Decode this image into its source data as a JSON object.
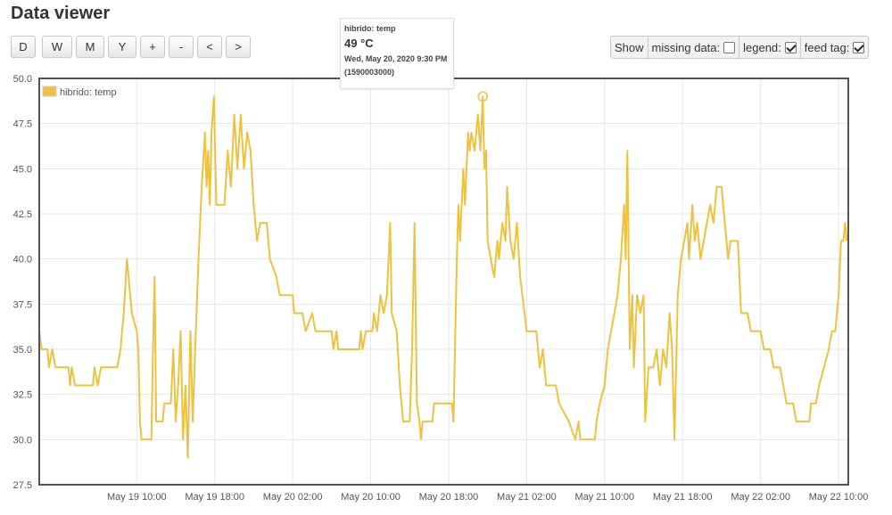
{
  "header": {
    "title": "Data viewer"
  },
  "toolbar": {
    "buttons": [
      "D",
      "W",
      "M",
      "Y",
      "+",
      "-",
      "<",
      ">"
    ],
    "show_label": "Show",
    "missing_label": "missing data:",
    "legend_label": "legend:",
    "feedtag_label": "feed tag:",
    "missing_checked": false,
    "legend_checked": true,
    "feedtag_checked": true
  },
  "tooltip": {
    "series": "hibrido: temp",
    "value": "49 °C",
    "date": "Wed, May 20, 2020 9:30 PM",
    "timestamp": "(1590003000)"
  },
  "chart_data": {
    "type": "line",
    "title": "",
    "xlabel": "",
    "ylabel": "",
    "legend_position": "top-left",
    "grid": true,
    "ylim": [
      27.5,
      50.0
    ],
    "xlim": [
      "2020-05-19 00:00",
      "2020-05-22 11:00"
    ],
    "y_ticks": [
      "27.5",
      "30.0",
      "32.5",
      "35.0",
      "37.5",
      "40.0",
      "42.5",
      "45.0",
      "47.5",
      "50.0"
    ],
    "x_ticks": [
      {
        "time": "2020-05-19 10:00",
        "label": "May 19 10:00"
      },
      {
        "time": "2020-05-19 18:00",
        "label": "May 19 18:00"
      },
      {
        "time": "2020-05-20 02:00",
        "label": "May 20 02:00"
      },
      {
        "time": "2020-05-20 10:00",
        "label": "May 20 10:00"
      },
      {
        "time": "2020-05-20 18:00",
        "label": "May 20 18:00"
      },
      {
        "time": "2020-05-21 02:00",
        "label": "May 21 02:00"
      },
      {
        "time": "2020-05-21 10:00",
        "label": "May 21 10:00"
      },
      {
        "time": "2020-05-21 18:00",
        "label": "May 21 18:00"
      },
      {
        "time": "2020-05-22 02:00",
        "label": "May 22 02:00"
      },
      {
        "time": "2020-05-22 10:00",
        "label": "May 22 10:00"
      }
    ],
    "highlight": {
      "time": "2020-05-20 21:30",
      "value": 49
    },
    "series": [
      {
        "name": "hibrido: temp",
        "color": "#edc240",
        "points": [
          [
            "2020-05-19 00:00",
            36
          ],
          [
            "2020-05-19 00:15",
            35
          ],
          [
            "2020-05-19 00:50",
            35
          ],
          [
            "2020-05-19 01:00",
            34
          ],
          [
            "2020-05-19 01:20",
            35
          ],
          [
            "2020-05-19 01:40",
            34
          ],
          [
            "2020-05-19 03:00",
            34
          ],
          [
            "2020-05-19 03:10",
            33
          ],
          [
            "2020-05-19 03:20",
            34
          ],
          [
            "2020-05-19 03:40",
            33
          ],
          [
            "2020-05-19 05:30",
            33
          ],
          [
            "2020-05-19 05:40",
            34
          ],
          [
            "2020-05-19 06:00",
            33
          ],
          [
            "2020-05-19 06:20",
            34
          ],
          [
            "2020-05-19 08:00",
            34
          ],
          [
            "2020-05-19 08:20",
            35
          ],
          [
            "2020-05-19 08:40",
            37
          ],
          [
            "2020-05-19 09:00",
            40
          ],
          [
            "2020-05-19 09:10",
            39
          ],
          [
            "2020-05-19 09:30",
            37
          ],
          [
            "2020-05-19 10:00",
            36
          ],
          [
            "2020-05-19 10:10",
            35
          ],
          [
            "2020-05-19 10:20",
            31
          ],
          [
            "2020-05-19 10:30",
            30
          ],
          [
            "2020-05-19 11:30",
            30
          ],
          [
            "2020-05-19 11:40",
            35
          ],
          [
            "2020-05-19 11:50",
            39
          ],
          [
            "2020-05-19 12:00",
            31
          ],
          [
            "2020-05-19 12:40",
            31
          ],
          [
            "2020-05-19 12:50",
            32
          ],
          [
            "2020-05-19 13:30",
            32
          ],
          [
            "2020-05-19 13:45",
            35
          ],
          [
            "2020-05-19 14:00",
            31
          ],
          [
            "2020-05-19 14:15",
            33
          ],
          [
            "2020-05-19 14:30",
            36
          ],
          [
            "2020-05-19 14:45",
            30
          ],
          [
            "2020-05-19 15:00",
            33
          ],
          [
            "2020-05-19 15:15",
            29
          ],
          [
            "2020-05-19 15:30",
            36
          ],
          [
            "2020-05-19 15:45",
            31
          ],
          [
            "2020-05-19 16:00",
            35
          ],
          [
            "2020-05-19 16:20",
            40
          ],
          [
            "2020-05-19 16:40",
            44
          ],
          [
            "2020-05-19 17:00",
            47
          ],
          [
            "2020-05-19 17:10",
            44
          ],
          [
            "2020-05-19 17:20",
            46
          ],
          [
            "2020-05-19 17:30",
            43
          ],
          [
            "2020-05-19 17:40",
            47
          ],
          [
            "2020-05-19 17:55",
            49
          ],
          [
            "2020-05-19 18:10",
            43
          ],
          [
            "2020-05-19 19:00",
            43
          ],
          [
            "2020-05-19 19:20",
            46
          ],
          [
            "2020-05-19 19:40",
            44
          ],
          [
            "2020-05-19 20:00",
            48
          ],
          [
            "2020-05-19 20:20",
            45
          ],
          [
            "2020-05-19 20:40",
            48
          ],
          [
            "2020-05-19 21:00",
            45
          ],
          [
            "2020-05-19 21:20",
            47
          ],
          [
            "2020-05-19 21:40",
            46
          ],
          [
            "2020-05-19 22:00",
            43
          ],
          [
            "2020-05-19 22:20",
            41
          ],
          [
            "2020-05-19 22:40",
            42
          ],
          [
            "2020-05-19 23:20",
            42
          ],
          [
            "2020-05-19 23:40",
            40
          ],
          [
            "2020-05-20 00:20",
            39
          ],
          [
            "2020-05-20 00:40",
            38
          ],
          [
            "2020-05-20 02:00",
            38
          ],
          [
            "2020-05-20 02:10",
            37
          ],
          [
            "2020-05-20 03:00",
            37
          ],
          [
            "2020-05-20 03:20",
            36
          ],
          [
            "2020-05-20 04:00",
            37
          ],
          [
            "2020-05-20 04:20",
            36
          ],
          [
            "2020-05-20 06:00",
            36
          ],
          [
            "2020-05-20 06:10",
            35
          ],
          [
            "2020-05-20 06:30",
            36
          ],
          [
            "2020-05-20 06:40",
            35
          ],
          [
            "2020-05-20 08:50",
            35
          ],
          [
            "2020-05-20 09:00",
            36
          ],
          [
            "2020-05-20 09:10",
            35
          ],
          [
            "2020-05-20 09:30",
            36
          ],
          [
            "2020-05-20 10:10",
            36
          ],
          [
            "2020-05-20 10:20",
            37
          ],
          [
            "2020-05-20 10:40",
            36
          ],
          [
            "2020-05-20 11:00",
            38
          ],
          [
            "2020-05-20 11:20",
            37
          ],
          [
            "2020-05-20 11:40",
            38
          ],
          [
            "2020-05-20 12:00",
            42
          ],
          [
            "2020-05-20 12:10",
            37
          ],
          [
            "2020-05-20 12:40",
            36
          ],
          [
            "2020-05-20 13:00",
            33
          ],
          [
            "2020-05-20 13:20",
            31
          ],
          [
            "2020-05-20 14:00",
            31
          ],
          [
            "2020-05-20 14:15",
            35
          ],
          [
            "2020-05-20 14:30",
            42
          ],
          [
            "2020-05-20 14:45",
            32
          ],
          [
            "2020-05-20 15:00",
            31
          ],
          [
            "2020-05-20 15:10",
            30
          ],
          [
            "2020-05-20 15:20",
            31
          ],
          [
            "2020-05-20 16:20",
            31
          ],
          [
            "2020-05-20 16:30",
            32
          ],
          [
            "2020-05-20 18:20",
            32
          ],
          [
            "2020-05-20 18:30",
            31
          ],
          [
            "2020-05-20 18:50",
            40
          ],
          [
            "2020-05-20 19:00",
            43
          ],
          [
            "2020-05-20 19:10",
            41
          ],
          [
            "2020-05-20 19:30",
            45
          ],
          [
            "2020-05-20 19:40",
            43
          ],
          [
            "2020-05-20 20:00",
            47
          ],
          [
            "2020-05-20 20:10",
            46
          ],
          [
            "2020-05-20 20:20",
            47
          ],
          [
            "2020-05-20 20:40",
            46
          ],
          [
            "2020-05-20 21:00",
            48
          ],
          [
            "2020-05-20 21:15",
            46
          ],
          [
            "2020-05-20 21:30",
            49
          ],
          [
            "2020-05-20 21:40",
            45
          ],
          [
            "2020-05-20 21:50",
            46
          ],
          [
            "2020-05-20 22:00",
            41
          ],
          [
            "2020-05-20 22:20",
            40
          ],
          [
            "2020-05-20 22:40",
            39
          ],
          [
            "2020-05-20 23:00",
            41
          ],
          [
            "2020-05-20 23:10",
            40
          ],
          [
            "2020-05-20 23:30",
            42
          ],
          [
            "2020-05-20 23:50",
            41
          ],
          [
            "2020-05-21 00:00",
            44
          ],
          [
            "2020-05-21 00:20",
            41
          ],
          [
            "2020-05-21 00:40",
            40
          ],
          [
            "2020-05-21 01:00",
            42
          ],
          [
            "2020-05-21 01:20",
            39
          ],
          [
            "2020-05-21 02:00",
            36
          ],
          [
            "2020-05-21 03:00",
            36
          ],
          [
            "2020-05-21 03:20",
            34
          ],
          [
            "2020-05-21 03:40",
            35
          ],
          [
            "2020-05-21 04:00",
            33
          ],
          [
            "2020-05-21 05:00",
            33
          ],
          [
            "2020-05-21 05:20",
            32
          ],
          [
            "2020-05-21 06:20",
            31
          ],
          [
            "2020-05-21 07:00",
            30
          ],
          [
            "2020-05-21 07:20",
            31
          ],
          [
            "2020-05-21 07:30",
            30
          ],
          [
            "2020-05-21 09:00",
            30
          ],
          [
            "2020-05-21 09:10",
            31
          ],
          [
            "2020-05-21 09:30",
            32
          ],
          [
            "2020-05-21 10:00",
            33
          ],
          [
            "2020-05-21 10:20",
            35
          ],
          [
            "2020-05-21 10:40",
            36
          ],
          [
            "2020-05-21 11:00",
            37
          ],
          [
            "2020-05-21 11:20",
            38
          ],
          [
            "2020-05-21 11:40",
            40
          ],
          [
            "2020-05-21 12:00",
            43
          ],
          [
            "2020-05-21 12:10",
            40
          ],
          [
            "2020-05-21 12:20",
            46
          ],
          [
            "2020-05-21 12:35",
            35
          ],
          [
            "2020-05-21 12:50",
            38
          ],
          [
            "2020-05-21 13:00",
            34
          ],
          [
            "2020-05-21 13:20",
            38
          ],
          [
            "2020-05-21 13:40",
            37
          ],
          [
            "2020-05-21 14:00",
            38
          ],
          [
            "2020-05-21 14:10",
            31
          ],
          [
            "2020-05-21 14:30",
            34
          ],
          [
            "2020-05-21 15:00",
            34
          ],
          [
            "2020-05-21 15:20",
            35
          ],
          [
            "2020-05-21 15:40",
            33
          ],
          [
            "2020-05-21 16:00",
            35
          ],
          [
            "2020-05-21 16:20",
            34
          ],
          [
            "2020-05-21 16:40",
            37
          ],
          [
            "2020-05-21 16:55",
            35
          ],
          [
            "2020-05-21 17:10",
            30
          ],
          [
            "2020-05-21 17:30",
            38
          ],
          [
            "2020-05-21 17:50",
            40
          ],
          [
            "2020-05-21 18:10",
            41
          ],
          [
            "2020-05-21 18:30",
            42
          ],
          [
            "2020-05-21 18:40",
            40
          ],
          [
            "2020-05-21 19:00",
            43
          ],
          [
            "2020-05-21 19:15",
            41
          ],
          [
            "2020-05-21 19:30",
            42
          ],
          [
            "2020-05-21 19:50",
            40
          ],
          [
            "2020-05-21 20:10",
            41
          ],
          [
            "2020-05-21 20:30",
            42
          ],
          [
            "2020-05-21 20:50",
            43
          ],
          [
            "2020-05-21 21:10",
            42
          ],
          [
            "2020-05-21 21:20",
            43
          ],
          [
            "2020-05-21 21:30",
            44
          ],
          [
            "2020-05-21 22:00",
            44
          ],
          [
            "2020-05-21 22:20",
            42
          ],
          [
            "2020-05-21 22:40",
            40
          ],
          [
            "2020-05-21 22:55",
            41
          ],
          [
            "2020-05-21 23:40",
            41
          ],
          [
            "2020-05-21 23:50",
            39
          ],
          [
            "2020-05-22 00:00",
            37
          ],
          [
            "2020-05-22 00:40",
            37
          ],
          [
            "2020-05-22 01:00",
            36
          ],
          [
            "2020-05-22 02:00",
            36
          ],
          [
            "2020-05-22 02:20",
            35
          ],
          [
            "2020-05-22 03:00",
            35
          ],
          [
            "2020-05-22 03:20",
            34
          ],
          [
            "2020-05-22 04:00",
            34
          ],
          [
            "2020-05-22 04:20",
            33
          ],
          [
            "2020-05-22 04:40",
            32
          ],
          [
            "2020-05-22 05:20",
            32
          ],
          [
            "2020-05-22 05:40",
            31
          ],
          [
            "2020-05-22 07:00",
            31
          ],
          [
            "2020-05-22 07:10",
            32
          ],
          [
            "2020-05-22 07:40",
            32
          ],
          [
            "2020-05-22 08:00",
            33
          ],
          [
            "2020-05-22 08:30",
            34
          ],
          [
            "2020-05-22 09:00",
            35
          ],
          [
            "2020-05-22 09:20",
            36
          ],
          [
            "2020-05-22 09:40",
            36
          ],
          [
            "2020-05-22 10:00",
            38
          ],
          [
            "2020-05-22 10:15",
            41
          ],
          [
            "2020-05-22 10:30",
            41
          ],
          [
            "2020-05-22 10:40",
            42
          ],
          [
            "2020-05-22 10:50",
            41
          ]
        ]
      }
    ]
  }
}
